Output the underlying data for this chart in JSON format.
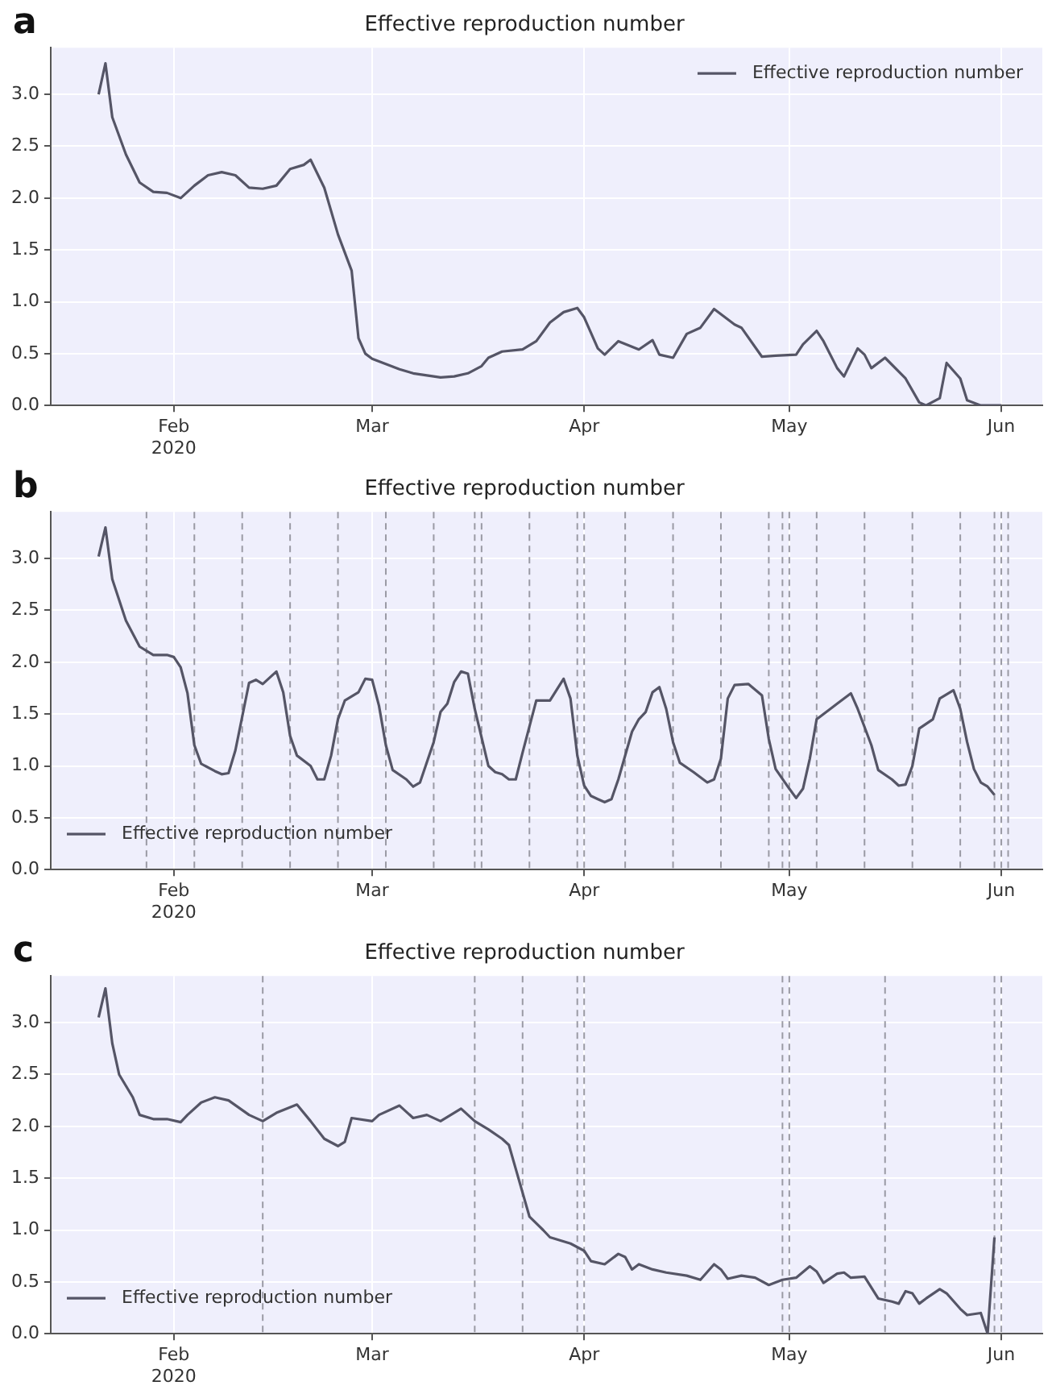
{
  "chart_data": [
    {
      "type": "line",
      "title": "Effective reproduction number",
      "annotations": [
        "a"
      ],
      "legend": "top right",
      "grid": true,
      "xlim": [
        "2020-01-14",
        "2020-06-07"
      ],
      "ylim": [
        0,
        3.45
      ],
      "xticks": [
        {
          "value": "2020-02-01",
          "label": "Feb\n2020"
        },
        {
          "value": "2020-03-01",
          "label": "Mar"
        },
        {
          "value": "2020-04-01",
          "label": "Apr"
        },
        {
          "value": "2020-05-01",
          "label": "May"
        },
        {
          "value": "2020-06-01",
          "label": "Jun"
        }
      ],
      "yticks": [
        {
          "value": 0,
          "label": "0.0"
        },
        {
          "value": 0.5,
          "label": "0.5"
        },
        {
          "value": 1,
          "label": "1.0"
        },
        {
          "value": 1.5,
          "label": "1.5"
        },
        {
          "value": 2,
          "label": "2.0"
        },
        {
          "value": 2.5,
          "label": "2.5"
        },
        {
          "value": 3,
          "label": "3.0"
        }
      ],
      "series": [
        {
          "name": "Effective reproduction number",
          "color": "#555566",
          "x": [
            "2020-01-21",
            "2020-01-22",
            "2020-01-23",
            "2020-01-25",
            "2020-01-27",
            "2020-01-29",
            "2020-01-31",
            "2020-02-02",
            "2020-02-04",
            "2020-02-06",
            "2020-02-08",
            "2020-02-10",
            "2020-02-12",
            "2020-02-14",
            "2020-02-16",
            "2020-02-18",
            "2020-02-20",
            "2020-02-21",
            "2020-02-23",
            "2020-02-25",
            "2020-02-27",
            "2020-02-28",
            "2020-02-29",
            "2020-03-01",
            "2020-03-03",
            "2020-03-05",
            "2020-03-07",
            "2020-03-09",
            "2020-03-11",
            "2020-03-13",
            "2020-03-15",
            "2020-03-17",
            "2020-03-18",
            "2020-03-20",
            "2020-03-23",
            "2020-03-25",
            "2020-03-27",
            "2020-03-29",
            "2020-03-31",
            "2020-04-01",
            "2020-04-03",
            "2020-04-04",
            "2020-04-06",
            "2020-04-09",
            "2020-04-11",
            "2020-04-12",
            "2020-04-14",
            "2020-04-16",
            "2020-04-18",
            "2020-04-20",
            "2020-04-23",
            "2020-04-24",
            "2020-04-27",
            "2020-04-29",
            "2020-05-02",
            "2020-05-03",
            "2020-05-05",
            "2020-05-06",
            "2020-05-08",
            "2020-05-09",
            "2020-05-11",
            "2020-05-12",
            "2020-05-13",
            "2020-05-15",
            "2020-05-18",
            "2020-05-20",
            "2020-05-21",
            "2020-05-23",
            "2020-05-24",
            "2020-05-26",
            "2020-05-27",
            "2020-05-29",
            "2020-06-01"
          ],
          "values": [
            3.0,
            3.3,
            2.78,
            2.42,
            2.15,
            2.06,
            2.05,
            2.0,
            2.12,
            2.22,
            2.25,
            2.22,
            2.1,
            2.09,
            2.12,
            2.28,
            2.32,
            2.37,
            2.1,
            1.65,
            1.3,
            0.65,
            0.5,
            0.45,
            0.4,
            0.35,
            0.31,
            0.29,
            0.27,
            0.28,
            0.31,
            0.38,
            0.46,
            0.52,
            0.54,
            0.62,
            0.8,
            0.9,
            0.94,
            0.85,
            0.55,
            0.49,
            0.62,
            0.54,
            0.63,
            0.49,
            0.46,
            0.69,
            0.75,
            0.93,
            0.78,
            0.75,
            0.47,
            0.48,
            0.49,
            0.59,
            0.72,
            0.62,
            0.36,
            0.28,
            0.55,
            0.49,
            0.36,
            0.46,
            0.26,
            0.03,
            0,
            0.07,
            0.41,
            0.26,
            0.05,
            0,
            0
          ]
        }
      ]
    },
    {
      "type": "line",
      "title": "Effective reproduction number",
      "annotations": [
        "b"
      ],
      "legend": "bottom left",
      "grid": true,
      "xlim": [
        "2020-01-14",
        "2020-06-07"
      ],
      "ylim": [
        0,
        3.45
      ],
      "xticks": [
        {
          "value": "2020-02-01",
          "label": "Feb\n2020"
        },
        {
          "value": "2020-03-01",
          "label": "Mar"
        },
        {
          "value": "2020-04-01",
          "label": "Apr"
        },
        {
          "value": "2020-05-01",
          "label": "May"
        },
        {
          "value": "2020-06-01",
          "label": "Jun"
        }
      ],
      "yticks": [
        {
          "value": 0,
          "label": "0.0"
        },
        {
          "value": 0.5,
          "label": "0.5"
        },
        {
          "value": 1,
          "label": "1.0"
        },
        {
          "value": 1.5,
          "label": "1.5"
        },
        {
          "value": 2,
          "label": "2.0"
        },
        {
          "value": 2.5,
          "label": "2.5"
        },
        {
          "value": 3,
          "label": "3.0"
        }
      ],
      "ref_lines": [
        {
          "axis": "x",
          "value": "2020-01-28",
          "color": "#9a9aa4",
          "line_style": "dashed"
        },
        {
          "axis": "x",
          "value": "2020-02-04",
          "color": "#9a9aa4",
          "line_style": "dashed"
        },
        {
          "axis": "x",
          "value": "2020-02-11",
          "color": "#9a9aa4",
          "line_style": "dashed"
        },
        {
          "axis": "x",
          "value": "2020-02-18",
          "color": "#9a9aa4",
          "line_style": "dashed"
        },
        {
          "axis": "x",
          "value": "2020-02-25",
          "color": "#9a9aa4",
          "line_style": "dashed"
        },
        {
          "axis": "x",
          "value": "2020-03-03",
          "color": "#9a9aa4",
          "line_style": "dashed"
        },
        {
          "axis": "x",
          "value": "2020-03-10",
          "color": "#9a9aa4",
          "line_style": "dashed"
        },
        {
          "axis": "x",
          "value": "2020-03-16",
          "color": "#9a9aa4",
          "line_style": "dashed"
        },
        {
          "axis": "x",
          "value": "2020-03-17",
          "color": "#9a9aa4",
          "line_style": "dashed"
        },
        {
          "axis": "x",
          "value": "2020-03-24",
          "color": "#9a9aa4",
          "line_style": "dashed"
        },
        {
          "axis": "x",
          "value": "2020-03-31",
          "color": "#9a9aa4",
          "line_style": "dashed"
        },
        {
          "axis": "x",
          "value": "2020-04-01",
          "color": "#9a9aa4",
          "line_style": "dashed"
        },
        {
          "axis": "x",
          "value": "2020-04-07",
          "color": "#9a9aa4",
          "line_style": "dashed"
        },
        {
          "axis": "x",
          "value": "2020-04-14",
          "color": "#9a9aa4",
          "line_style": "dashed"
        },
        {
          "axis": "x",
          "value": "2020-04-21",
          "color": "#9a9aa4",
          "line_style": "dashed"
        },
        {
          "axis": "x",
          "value": "2020-04-28",
          "color": "#9a9aa4",
          "line_style": "dashed"
        },
        {
          "axis": "x",
          "value": "2020-04-30",
          "color": "#9a9aa4",
          "line_style": "dashed"
        },
        {
          "axis": "x",
          "value": "2020-05-01",
          "color": "#9a9aa4",
          "line_style": "dashed"
        },
        {
          "axis": "x",
          "value": "2020-05-05",
          "color": "#9a9aa4",
          "line_style": "dashed"
        },
        {
          "axis": "x",
          "value": "2020-05-12",
          "color": "#9a9aa4",
          "line_style": "dashed"
        },
        {
          "axis": "x",
          "value": "2020-05-19",
          "color": "#9a9aa4",
          "line_style": "dashed"
        },
        {
          "axis": "x",
          "value": "2020-05-26",
          "color": "#9a9aa4",
          "line_style": "dashed"
        },
        {
          "axis": "x",
          "value": "2020-05-31",
          "color": "#9a9aa4",
          "line_style": "dashed"
        },
        {
          "axis": "x",
          "value": "2020-06-01",
          "color": "#9a9aa4",
          "line_style": "dashed"
        },
        {
          "axis": "x",
          "value": "2020-06-02",
          "color": "#9a9aa4",
          "line_style": "dashed"
        }
      ],
      "series": [
        {
          "name": "Effective reproduction number",
          "color": "#555566",
          "x": [
            "2020-01-21",
            "2020-01-22",
            "2020-01-23",
            "2020-01-25",
            "2020-01-27",
            "2020-01-29",
            "2020-01-31",
            "2020-02-01",
            "2020-02-02",
            "2020-02-03",
            "2020-02-04",
            "2020-02-05",
            "2020-02-07",
            "2020-02-08",
            "2020-02-09",
            "2020-02-10",
            "2020-02-12",
            "2020-02-13",
            "2020-02-14",
            "2020-02-16",
            "2020-02-17",
            "2020-02-18",
            "2020-02-19",
            "2020-02-21",
            "2020-02-22",
            "2020-02-23",
            "2020-02-24",
            "2020-02-25",
            "2020-02-26",
            "2020-02-28",
            "2020-02-29",
            "2020-03-01",
            "2020-03-02",
            "2020-03-03",
            "2020-03-04",
            "2020-03-06",
            "2020-03-07",
            "2020-03-08",
            "2020-03-10",
            "2020-03-11",
            "2020-03-12",
            "2020-03-13",
            "2020-03-14",
            "2020-03-15",
            "2020-03-16",
            "2020-03-18",
            "2020-03-19",
            "2020-03-20",
            "2020-03-21",
            "2020-03-22",
            "2020-03-23",
            "2020-03-25",
            "2020-03-26",
            "2020-03-27",
            "2020-03-29",
            "2020-03-30",
            "2020-03-31",
            "2020-04-01",
            "2020-04-02",
            "2020-04-03",
            "2020-04-04",
            "2020-04-05",
            "2020-04-06",
            "2020-04-08",
            "2020-04-09",
            "2020-04-10",
            "2020-04-11",
            "2020-04-12",
            "2020-04-13",
            "2020-04-14",
            "2020-04-15",
            "2020-04-17",
            "2020-04-19",
            "2020-04-20",
            "2020-04-21",
            "2020-04-22",
            "2020-04-23",
            "2020-04-25",
            "2020-04-27",
            "2020-04-28",
            "2020-04-29",
            "2020-05-01",
            "2020-05-02",
            "2020-05-03",
            "2020-05-04",
            "2020-05-05",
            "2020-05-07",
            "2020-05-08",
            "2020-05-10",
            "2020-05-11",
            "2020-05-13",
            "2020-05-14",
            "2020-05-16",
            "2020-05-17",
            "2020-05-18",
            "2020-05-19",
            "2020-05-20",
            "2020-05-22",
            "2020-05-23",
            "2020-05-25",
            "2020-05-26",
            "2020-05-27",
            "2020-05-28",
            "2020-05-29",
            "2020-05-30",
            "2020-05-31"
          ],
          "values": [
            3.02,
            3.3,
            2.8,
            2.4,
            2.15,
            2.07,
            2.07,
            2.05,
            1.95,
            1.7,
            1.2,
            1.02,
            0.95,
            0.92,
            0.93,
            1.15,
            1.8,
            1.83,
            1.79,
            1.91,
            1.71,
            1.29,
            1.1,
            1.0,
            0.87,
            0.87,
            1.1,
            1.45,
            1.63,
            1.71,
            1.84,
            1.83,
            1.58,
            1.2,
            0.96,
            0.87,
            0.8,
            0.84,
            1.23,
            1.52,
            1.6,
            1.81,
            1.91,
            1.89,
            1.55,
            1.0,
            0.94,
            0.92,
            0.87,
            0.87,
            1.13,
            1.63,
            1.63,
            1.63,
            1.84,
            1.65,
            1.1,
            0.81,
            0.71,
            0.68,
            0.65,
            0.68,
            0.87,
            1.33,
            1.45,
            1.52,
            1.71,
            1.76,
            1.55,
            1.23,
            1.03,
            0.94,
            0.84,
            0.87,
            1.07,
            1.65,
            1.78,
            1.79,
            1.68,
            1.26,
            0.97,
            0.78,
            0.69,
            0.78,
            1.07,
            1.45,
            1.55,
            1.6,
            1.7,
            1.55,
            1.2,
            0.96,
            0.87,
            0.81,
            0.82,
            1.0,
            1.36,
            1.45,
            1.65,
            1.73,
            1.55,
            1.23,
            0.97,
            0.84,
            0.8,
            0.72
          ]
        }
      ]
    },
    {
      "type": "line",
      "title": "Effective reproduction number",
      "annotations": [
        "c"
      ],
      "legend": "bottom left",
      "grid": true,
      "xlim": [
        "2020-01-14",
        "2020-06-07"
      ],
      "ylim": [
        0,
        3.45
      ],
      "xticks": [
        {
          "value": "2020-02-01",
          "label": "Feb\n2020"
        },
        {
          "value": "2020-03-01",
          "label": "Mar"
        },
        {
          "value": "2020-04-01",
          "label": "Apr"
        },
        {
          "value": "2020-05-01",
          "label": "May"
        },
        {
          "value": "2020-06-01",
          "label": "Jun"
        }
      ],
      "yticks": [
        {
          "value": 0,
          "label": "0.0"
        },
        {
          "value": 0.5,
          "label": "0.5"
        },
        {
          "value": 1,
          "label": "1.0"
        },
        {
          "value": 1.5,
          "label": "1.5"
        },
        {
          "value": 2,
          "label": "2.0"
        },
        {
          "value": 2.5,
          "label": "2.5"
        },
        {
          "value": 3,
          "label": "3.0"
        }
      ],
      "ref_lines": [
        {
          "axis": "x",
          "value": "2020-02-14",
          "color": "#9a9aa4",
          "line_style": "dashed"
        },
        {
          "axis": "x",
          "value": "2020-03-16",
          "color": "#9a9aa4",
          "line_style": "dashed"
        },
        {
          "axis": "x",
          "value": "2020-03-23",
          "color": "#9a9aa4",
          "line_style": "dashed"
        },
        {
          "axis": "x",
          "value": "2020-03-31",
          "color": "#9a9aa4",
          "line_style": "dashed"
        },
        {
          "axis": "x",
          "value": "2020-04-01",
          "color": "#9a9aa4",
          "line_style": "dashed"
        },
        {
          "axis": "x",
          "value": "2020-04-30",
          "color": "#9a9aa4",
          "line_style": "dashed"
        },
        {
          "axis": "x",
          "value": "2020-05-01",
          "color": "#9a9aa4",
          "line_style": "dashed"
        },
        {
          "axis": "x",
          "value": "2020-05-15",
          "color": "#9a9aa4",
          "line_style": "dashed"
        },
        {
          "axis": "x",
          "value": "2020-05-31",
          "color": "#9a9aa4",
          "line_style": "dashed"
        },
        {
          "axis": "x",
          "value": "2020-06-01",
          "color": "#9a9aa4",
          "line_style": "dashed"
        }
      ],
      "series": [
        {
          "name": "Effective reproduction number",
          "color": "#555566",
          "x": [
            "2020-01-21",
            "2020-01-22",
            "2020-01-23",
            "2020-01-24",
            "2020-01-26",
            "2020-01-27",
            "2020-01-29",
            "2020-01-31",
            "2020-02-02",
            "2020-02-03",
            "2020-02-05",
            "2020-02-07",
            "2020-02-09",
            "2020-02-12",
            "2020-02-14",
            "2020-02-16",
            "2020-02-19",
            "2020-02-21",
            "2020-02-23",
            "2020-02-25",
            "2020-02-26",
            "2020-02-27",
            "2020-03-01",
            "2020-03-02",
            "2020-03-05",
            "2020-03-07",
            "2020-03-09",
            "2020-03-11",
            "2020-03-14",
            "2020-03-16",
            "2020-03-18",
            "2020-03-20",
            "2020-03-21",
            "2020-03-22",
            "2020-03-24",
            "2020-03-26",
            "2020-03-27",
            "2020-03-30",
            "2020-04-01",
            "2020-04-02",
            "2020-04-04",
            "2020-04-06",
            "2020-04-07",
            "2020-04-08",
            "2020-04-09",
            "2020-04-11",
            "2020-04-13",
            "2020-04-16",
            "2020-04-18",
            "2020-04-20",
            "2020-04-21",
            "2020-04-22",
            "2020-04-24",
            "2020-04-26",
            "2020-04-28",
            "2020-04-30",
            "2020-05-02",
            "2020-05-04",
            "2020-05-05",
            "2020-05-06",
            "2020-05-08",
            "2020-05-09",
            "2020-05-10",
            "2020-05-12",
            "2020-05-14",
            "2020-05-16",
            "2020-05-17",
            "2020-05-18",
            "2020-05-19",
            "2020-05-20",
            "2020-05-21",
            "2020-05-23",
            "2020-05-24",
            "2020-05-26",
            "2020-05-27",
            "2020-05-29",
            "2020-05-30",
            "2020-05-31"
          ],
          "values": [
            3.05,
            3.33,
            2.8,
            2.5,
            2.28,
            2.11,
            2.07,
            2.07,
            2.04,
            2.11,
            2.23,
            2.28,
            2.25,
            2.11,
            2.05,
            2.13,
            2.21,
            2.05,
            1.88,
            1.81,
            1.85,
            2.08,
            2.05,
            2.11,
            2.2,
            2.08,
            2.11,
            2.05,
            2.17,
            2.05,
            1.97,
            1.88,
            1.82,
            1.59,
            1.13,
            1.0,
            0.93,
            0.87,
            0.8,
            0.7,
            0.67,
            0.77,
            0.74,
            0.62,
            0.67,
            0.62,
            0.59,
            0.56,
            0.52,
            0.67,
            0.62,
            0.53,
            0.56,
            0.54,
            0.47,
            0.52,
            0.54,
            0.65,
            0.6,
            0.49,
            0.58,
            0.59,
            0.54,
            0.55,
            0.34,
            0.31,
            0.29,
            0.41,
            0.39,
            0.29,
            0.34,
            0.43,
            0.39,
            0.24,
            0.18,
            0.2,
            0,
            0.93
          ]
        }
      ]
    }
  ]
}
